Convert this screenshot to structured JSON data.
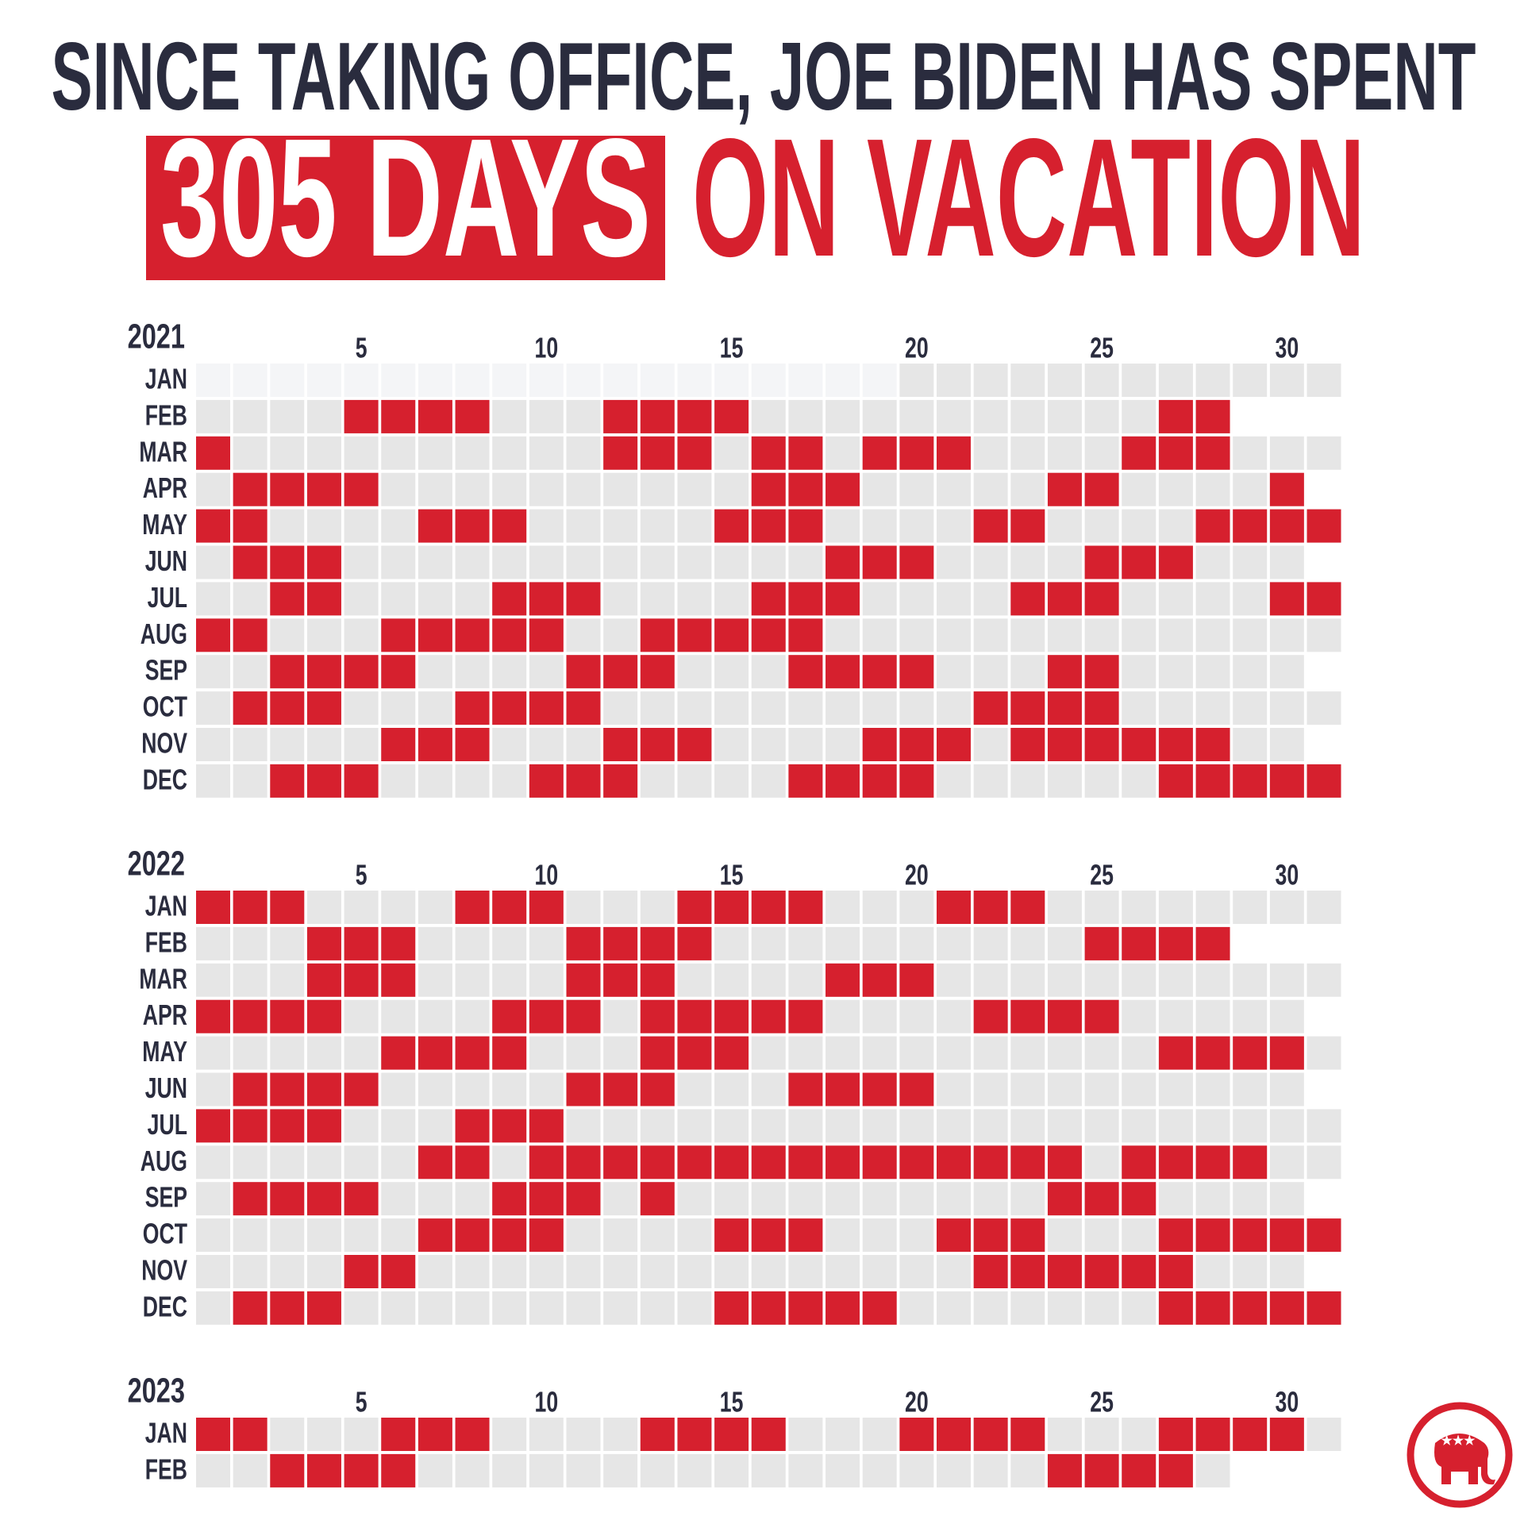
{
  "chart_data": {
    "type": "calendar",
    "title": "SINCE TAKING OFFICE, JOE BIDEN HAS SPENT",
    "highlight": "305 DAYS",
    "subtitle": "ON VACATION",
    "color": "#d6202e",
    "day_ticks": [
      5,
      10,
      15,
      20,
      25,
      30
    ],
    "years": [
      {
        "year": 2021,
        "months": [
          {
            "month": "JAN",
            "days": 31,
            "in_office_from": 20,
            "vacation": []
          },
          {
            "month": "FEB",
            "days": 28,
            "vacation": [
              5,
              6,
              7,
              8,
              12,
              13,
              14,
              15,
              27,
              28
            ]
          },
          {
            "month": "MAR",
            "days": 31,
            "vacation": [
              1,
              12,
              13,
              14,
              16,
              17,
              19,
              20,
              21,
              26,
              27,
              28
            ]
          },
          {
            "month": "APR",
            "days": 30,
            "vacation": [
              2,
              3,
              4,
              5,
              16,
              17,
              18,
              24,
              25,
              30
            ]
          },
          {
            "month": "MAY",
            "days": 31,
            "vacation": [
              1,
              2,
              7,
              8,
              9,
              15,
              16,
              17,
              22,
              23,
              28,
              29,
              30,
              31
            ]
          },
          {
            "month": "JUN",
            "days": 30,
            "vacation": [
              2,
              3,
              4,
              18,
              19,
              20,
              25,
              26,
              27
            ]
          },
          {
            "month": "JUL",
            "days": 31,
            "vacation": [
              3,
              4,
              9,
              10,
              11,
              16,
              17,
              18,
              23,
              24,
              25,
              30,
              31
            ]
          },
          {
            "month": "AUG",
            "days": 31,
            "vacation": [
              1,
              2,
              6,
              7,
              8,
              9,
              10,
              13,
              14,
              15,
              16,
              17
            ]
          },
          {
            "month": "SEP",
            "days": 30,
            "vacation": [
              3,
              4,
              5,
              6,
              11,
              12,
              13,
              17,
              18,
              19,
              20,
              24,
              25
            ]
          },
          {
            "month": "OCT",
            "days": 31,
            "vacation": [
              2,
              3,
              4,
              8,
              9,
              10,
              11,
              22,
              23,
              24,
              25
            ]
          },
          {
            "month": "NOV",
            "days": 30,
            "vacation": [
              6,
              7,
              8,
              12,
              13,
              14,
              19,
              20,
              21,
              23,
              24,
              25,
              26,
              27,
              28
            ]
          },
          {
            "month": "DEC",
            "days": 31,
            "vacation": [
              3,
              4,
              5,
              10,
              11,
              12,
              17,
              18,
              19,
              20,
              27,
              28,
              29,
              30,
              31
            ]
          }
        ]
      },
      {
        "year": 2022,
        "months": [
          {
            "month": "JAN",
            "days": 31,
            "vacation": [
              1,
              2,
              3,
              8,
              9,
              10,
              14,
              15,
              16,
              17,
              21,
              22,
              23
            ]
          },
          {
            "month": "FEB",
            "days": 28,
            "vacation": [
              4,
              5,
              6,
              11,
              12,
              13,
              14,
              25,
              26,
              27,
              28
            ]
          },
          {
            "month": "MAR",
            "days": 31,
            "vacation": [
              4,
              5,
              6,
              11,
              12,
              13,
              18,
              19,
              20
            ]
          },
          {
            "month": "APR",
            "days": 30,
            "vacation": [
              1,
              2,
              3,
              4,
              9,
              10,
              11,
              13,
              14,
              15,
              16,
              17,
              22,
              23,
              24,
              25
            ]
          },
          {
            "month": "MAY",
            "days": 31,
            "vacation": [
              6,
              7,
              8,
              9,
              13,
              14,
              15,
              27,
              28,
              29,
              30
            ]
          },
          {
            "month": "JUN",
            "days": 30,
            "vacation": [
              2,
              3,
              4,
              5,
              11,
              12,
              13,
              17,
              18,
              19,
              20
            ]
          },
          {
            "month": "JUL",
            "days": 31,
            "vacation": [
              1,
              2,
              3,
              4,
              8,
              9,
              10
            ]
          },
          {
            "month": "AUG",
            "days": 31,
            "vacation": [
              7,
              8,
              10,
              11,
              12,
              13,
              14,
              15,
              16,
              17,
              18,
              19,
              20,
              21,
              22,
              23,
              24,
              26,
              27,
              28,
              29
            ]
          },
          {
            "month": "SEP",
            "days": 30,
            "vacation": [
              2,
              3,
              4,
              5,
              9,
              10,
              11,
              13,
              24,
              25,
              26
            ]
          },
          {
            "month": "OCT",
            "days": 31,
            "vacation": [
              7,
              8,
              9,
              10,
              15,
              16,
              17,
              21,
              22,
              23,
              27,
              28,
              29,
              30,
              31
            ]
          },
          {
            "month": "NOV",
            "days": 30,
            "vacation": [
              5,
              6,
              22,
              23,
              24,
              25,
              26,
              27
            ]
          },
          {
            "month": "DEC",
            "days": 31,
            "vacation": [
              2,
              3,
              4,
              15,
              16,
              17,
              18,
              19,
              27,
              28,
              29,
              30,
              31
            ]
          }
        ]
      },
      {
        "year": 2023,
        "months": [
          {
            "month": "JAN",
            "days": 31,
            "vacation": [
              1,
              2,
              6,
              7,
              8,
              13,
              14,
              15,
              16,
              20,
              21,
              22,
              23,
              27,
              28,
              29,
              30
            ]
          },
          {
            "month": "FEB",
            "days": 28,
            "vacation": [
              3,
              4,
              5,
              6,
              24,
              25,
              26,
              27
            ]
          }
        ]
      }
    ]
  }
}
